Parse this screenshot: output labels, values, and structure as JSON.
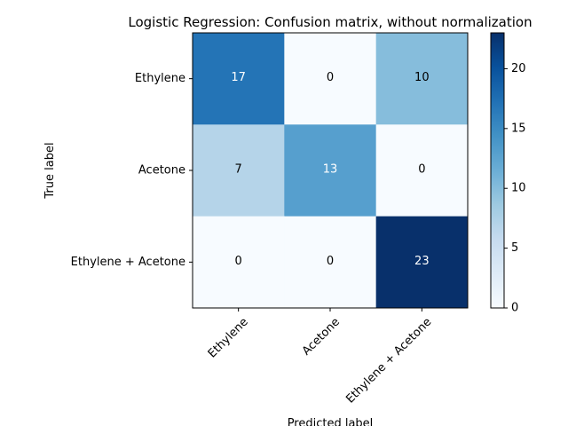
{
  "chart_data": {
    "type": "heatmap",
    "title": "Logistic Regression: Confusion matrix, without normalization",
    "xlabel": "Predicted label",
    "ylabel": "True label",
    "x_categories": [
      "Ethylene",
      "Acetone",
      "Ethylene + Acetone"
    ],
    "y_categories": [
      "Ethylene",
      "Acetone",
      "Ethylene + Acetone"
    ],
    "matrix": [
      [
        17,
        0,
        10
      ],
      [
        7,
        13,
        0
      ],
      [
        0,
        0,
        23
      ]
    ],
    "colormap": "Blues",
    "value_range": [
      0,
      23
    ],
    "colorbar_ticks": [
      0,
      5,
      10,
      15,
      20
    ],
    "x_tick_rotation_deg": 45,
    "grid": false
  }
}
